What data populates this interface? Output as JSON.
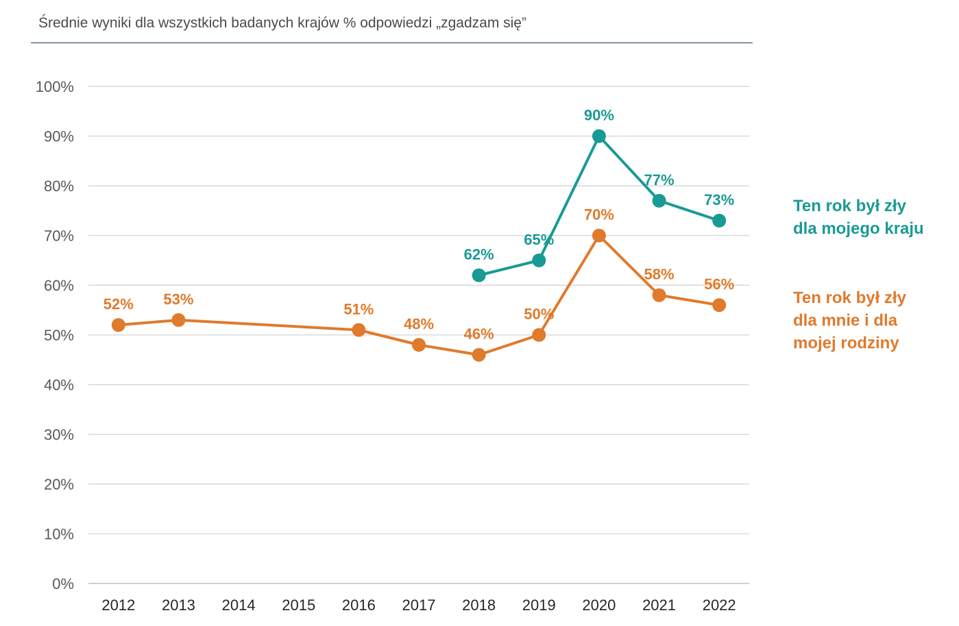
{
  "chart_data": {
    "type": "line",
    "title": "Średnie wyniki dla wszystkich badanych krajów % odpowiedzi „zgadzam się”",
    "categories": [
      "2012",
      "2013",
      "2014",
      "2015",
      "2016",
      "2017",
      "2018",
      "2019",
      "2020",
      "2021",
      "2022"
    ],
    "ylim": [
      0,
      100
    ],
    "yticks": [
      0,
      10,
      20,
      30,
      40,
      50,
      60,
      70,
      80,
      90,
      100
    ],
    "ytick_labels": [
      "0%",
      "10%",
      "20%",
      "30%",
      "40%",
      "50%",
      "60%",
      "70%",
      "80%",
      "90%",
      "100%"
    ],
    "grid": true,
    "series": [
      {
        "name": "Ten rok był zły\ndla mojego kraju",
        "color": "#1a9a94",
        "values": [
          null,
          null,
          null,
          null,
          null,
          null,
          62,
          65,
          90,
          77,
          73
        ],
        "labels": [
          null,
          null,
          null,
          null,
          null,
          null,
          "62%",
          "65%",
          "90%",
          "77%",
          "73%"
        ]
      },
      {
        "name": "Ten rok był zły\ndla mnie i dla\nmojej rodziny",
        "color": "#e07a2c",
        "values": [
          52,
          53,
          null,
          null,
          51,
          48,
          46,
          50,
          70,
          58,
          56
        ],
        "labels": [
          "52%",
          "53%",
          null,
          null,
          "51%",
          "48%",
          "46%",
          "50%",
          "70%",
          "58%",
          "56%"
        ]
      }
    ]
  }
}
